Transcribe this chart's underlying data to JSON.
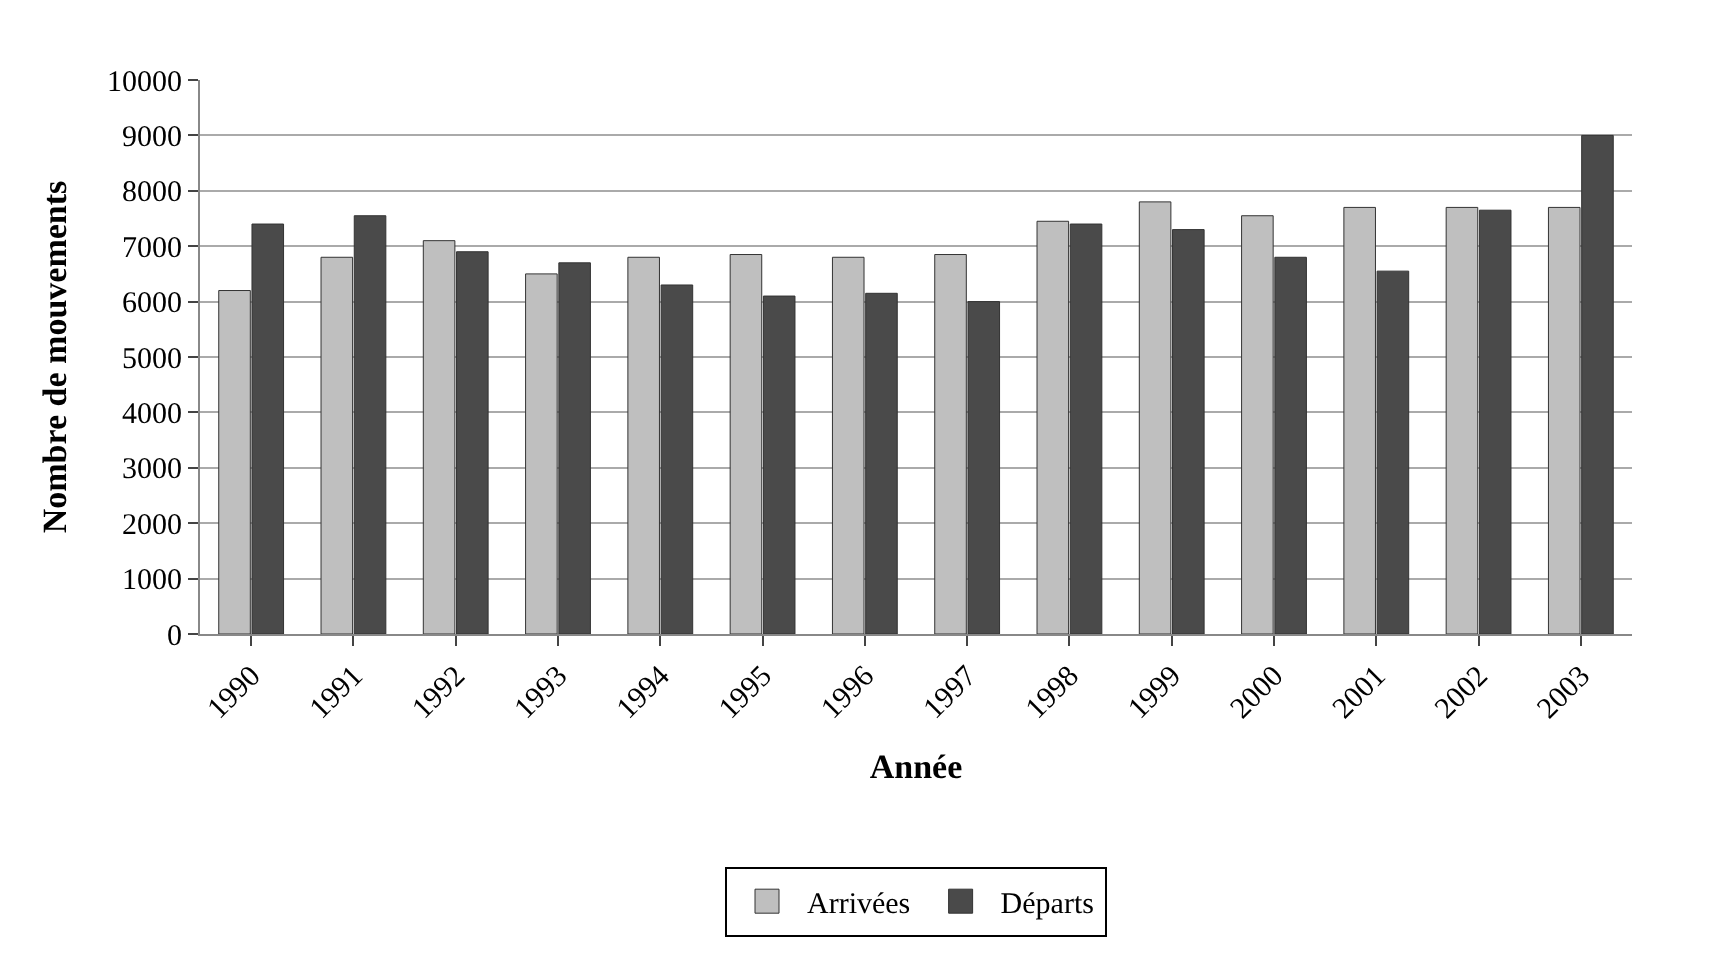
{
  "chart_data": {
    "type": "bar",
    "xlabel": "Année",
    "ylabel": "Nombre de mouvements",
    "categories": [
      "1990",
      "1991",
      "1992",
      "1993",
      "1994",
      "1995",
      "1996",
      "1997",
      "1998",
      "1999",
      "2000",
      "2001",
      "2002",
      "2003"
    ],
    "series": [
      {
        "name": "Arrivées",
        "color": "#bfbfbf",
        "values": [
          6200,
          6800,
          7100,
          6500,
          6800,
          6850,
          6800,
          6850,
          7450,
          7800,
          7550,
          7700,
          7700,
          7700
        ]
      },
      {
        "name": "Départs",
        "color": "#4a4a4a",
        "values": [
          7400,
          7550,
          6900,
          6700,
          6300,
          6100,
          6150,
          6000,
          7400,
          7300,
          6800,
          6550,
          7650,
          9000
        ]
      }
    ],
    "ylim": [
      0,
      10000
    ],
    "yticks": [
      0,
      1000,
      2000,
      3000,
      4000,
      5000,
      6000,
      7000,
      8000,
      9000,
      10000
    ],
    "grid": "y",
    "legend": "bottom"
  }
}
